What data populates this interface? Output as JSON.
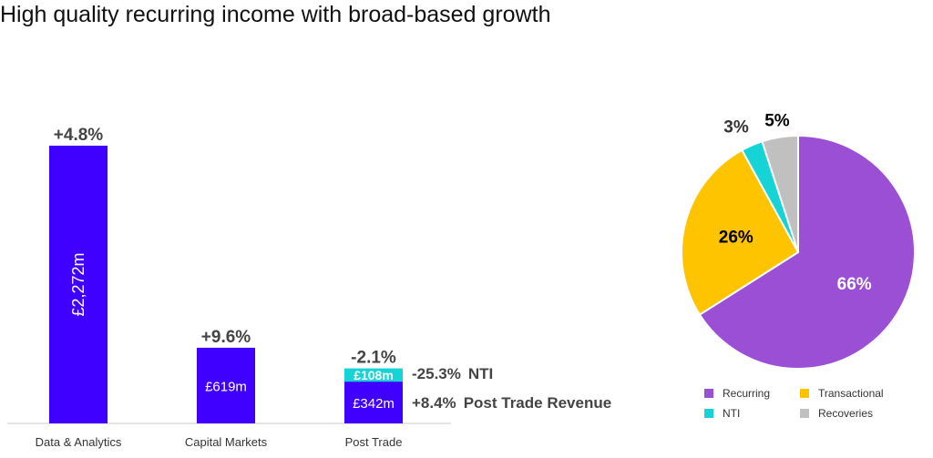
{
  "page": {
    "title": "High quality recurring income with broad-based growth"
  },
  "chart_data": [
    {
      "type": "bar",
      "categories": [
        "Data & Analytics",
        "Capital Markets",
        "Post Trade"
      ],
      "series": [
        {
          "name": "",
          "values": [
            2272,
            619,
            342
          ],
          "value_labels": [
            "£2,272m",
            "£619m",
            "£342m"
          ],
          "color": "#4000ff"
        },
        {
          "name": "NTI",
          "values": [
            0,
            0,
            108
          ],
          "value_labels": [
            "",
            "",
            "£108m"
          ],
          "color": "#16d3d6"
        }
      ],
      "growth_labels": [
        "+4.8%",
        "+9.6%",
        "-2.1%"
      ],
      "annotations": [
        {
          "category": "Post Trade",
          "segment": "NTI",
          "change": "-25.3%",
          "label": "NTI"
        },
        {
          "category": "Post Trade",
          "segment": "base",
          "change": "+8.4%",
          "label": "Post Trade Revenue"
        }
      ],
      "ylim": [
        0,
        2272
      ],
      "grid": false,
      "stacked": true
    },
    {
      "type": "pie",
      "slices": [
        {
          "name": "Recurring",
          "value": 66,
          "label": "66%",
          "color": "#9a4fd4",
          "label_color": "#ffffff"
        },
        {
          "name": "Transactional",
          "value": 26,
          "label": "26%",
          "color": "#ffc400",
          "label_color": "#000000"
        },
        {
          "name": "NTI",
          "value": 3,
          "label": "3%",
          "color": "#16d3d6",
          "label_color": "#333333"
        },
        {
          "name": "Recoveries",
          "value": 5,
          "label": "5%",
          "color": "#c0c0c0",
          "label_color": "#000000"
        }
      ],
      "legend": {
        "placement": "bottom",
        "items": [
          "Recurring",
          "Transactional",
          "NTI",
          "Recoveries"
        ]
      }
    }
  ]
}
